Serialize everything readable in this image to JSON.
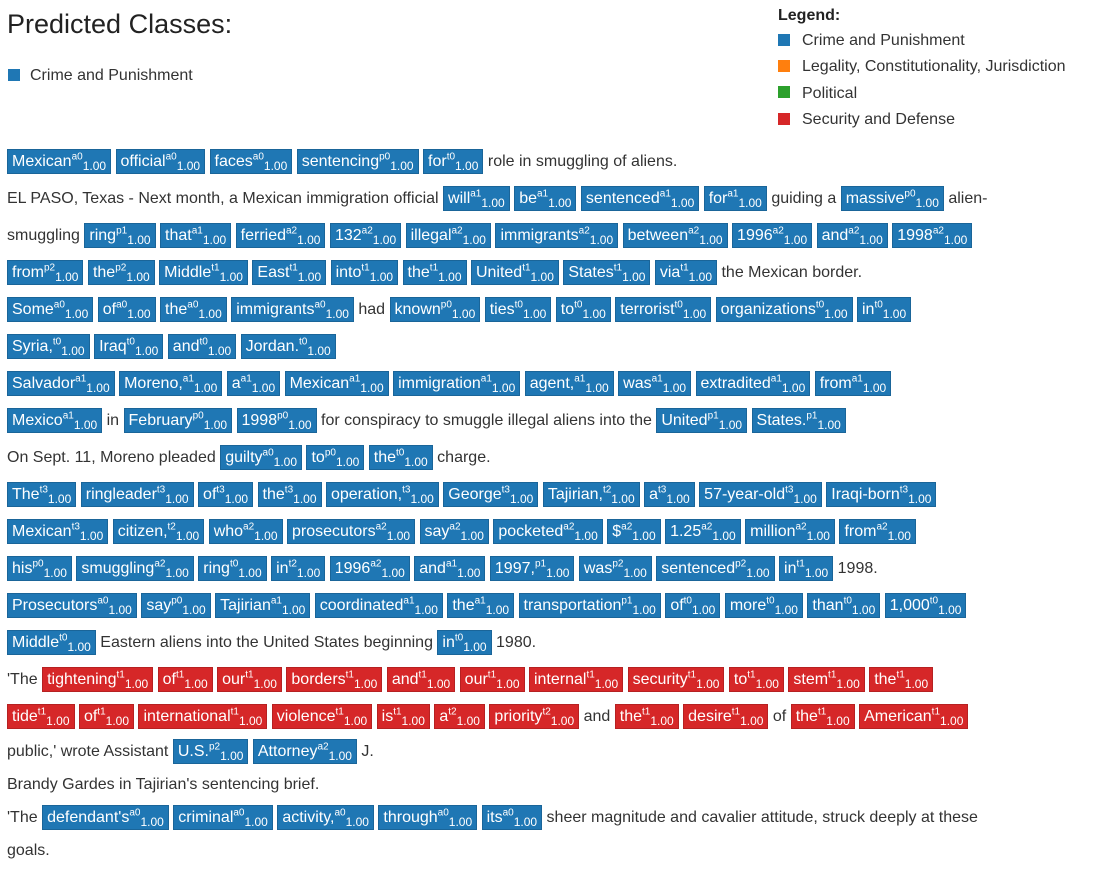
{
  "title": "Predicted Classes:",
  "predicted": [
    {
      "label": "Crime and Punishment",
      "color": "#1f77b4"
    }
  ],
  "legend": {
    "title": "Legend:",
    "items": [
      {
        "label": "Crime and Punishment",
        "color": "#1f77b4"
      },
      {
        "label": "Legality, Constitutionality, Jurisdiction",
        "color": "#ff7f0e"
      },
      {
        "label": "Political",
        "color": "#2ca02c"
      },
      {
        "label": "Security and Defense",
        "color": "#d62728"
      }
    ]
  },
  "lines": [
    [
      [
        "Mexican",
        "a0",
        "1.00",
        "b"
      ],
      [
        "official",
        "a0",
        "1.00",
        "b"
      ],
      [
        "faces",
        "a0",
        "1.00",
        "b"
      ],
      [
        "sentencing",
        "p0",
        "1.00",
        "b"
      ],
      [
        "for",
        "t0",
        "1.00",
        "b"
      ],
      [
        "role in smuggling of aliens."
      ]
    ],
    [
      [
        "EL PASO, Texas - Next month, a Mexican immigration official"
      ],
      [
        "will",
        "a1",
        "1.00",
        "b"
      ],
      [
        "be",
        "a1",
        "1.00",
        "b"
      ],
      [
        "sentenced",
        "a1",
        "1.00",
        "b"
      ],
      [
        "for",
        "a1",
        "1.00",
        "b"
      ],
      [
        "guiding a"
      ],
      [
        "massive",
        "p0",
        "1.00",
        "b"
      ],
      [
        "alien-"
      ]
    ],
    [
      [
        "smuggling"
      ],
      [
        "ring",
        "p1",
        "1.00",
        "b"
      ],
      [
        "that",
        "a1",
        "1.00",
        "b"
      ],
      [
        "ferried",
        "a2",
        "1.00",
        "b"
      ],
      [
        "132",
        "a2",
        "1.00",
        "b"
      ],
      [
        "illegal",
        "a2",
        "1.00",
        "b"
      ],
      [
        "immigrants",
        "a2",
        "1.00",
        "b"
      ],
      [
        "between",
        "a2",
        "1.00",
        "b"
      ],
      [
        "1996",
        "a2",
        "1.00",
        "b"
      ],
      [
        "and",
        "a2",
        "1.00",
        "b"
      ],
      [
        "1998",
        "a2",
        "1.00",
        "b"
      ]
    ],
    [
      [
        "from",
        "p2",
        "1.00",
        "b"
      ],
      [
        "the",
        "p2",
        "1.00",
        "b"
      ],
      [
        "Middle",
        "t1",
        "1.00",
        "b"
      ],
      [
        "East",
        "t1",
        "1.00",
        "b"
      ],
      [
        "into",
        "t1",
        "1.00",
        "b"
      ],
      [
        "the",
        "t1",
        "1.00",
        "b"
      ],
      [
        "United",
        "t1",
        "1.00",
        "b"
      ],
      [
        "States",
        "t1",
        "1.00",
        "b"
      ],
      [
        "via",
        "t1",
        "1.00",
        "b"
      ],
      [
        "the Mexican border."
      ]
    ],
    [
      [
        "Some",
        "a0",
        "1.00",
        "b"
      ],
      [
        "of",
        "a0",
        "1.00",
        "b"
      ],
      [
        "the",
        "a0",
        "1.00",
        "b"
      ],
      [
        "immigrants",
        "a0",
        "1.00",
        "b"
      ],
      [
        "had"
      ],
      [
        "known",
        "p0",
        "1.00",
        "b"
      ],
      [
        "ties",
        "t0",
        "1.00",
        "b"
      ],
      [
        "to",
        "t0",
        "1.00",
        "b"
      ],
      [
        "terrorist",
        "t0",
        "1.00",
        "b"
      ],
      [
        "organizations",
        "t0",
        "1.00",
        "b"
      ],
      [
        "in",
        "t0",
        "1.00",
        "b"
      ]
    ],
    [
      [
        "Syria,",
        "t0",
        "1.00",
        "b"
      ],
      [
        "Iraq",
        "t0",
        "1.00",
        "b"
      ],
      [
        "and",
        "t0",
        "1.00",
        "b"
      ],
      [
        "Jordan.",
        "t0",
        "1.00",
        "b"
      ]
    ],
    [
      [
        "Salvador",
        "a1",
        "1.00",
        "b"
      ],
      [
        "Moreno,",
        "a1",
        "1.00",
        "b"
      ],
      [
        "a",
        "a1",
        "1.00",
        "b"
      ],
      [
        "Mexican",
        "a1",
        "1.00",
        "b"
      ],
      [
        "immigration",
        "a1",
        "1.00",
        "b"
      ],
      [
        "agent,",
        "a1",
        "1.00",
        "b"
      ],
      [
        "was",
        "a1",
        "1.00",
        "b"
      ],
      [
        "extradited",
        "a1",
        "1.00",
        "b"
      ],
      [
        "from",
        "a1",
        "1.00",
        "b"
      ]
    ],
    [
      [
        "Mexico",
        "a1",
        "1.00",
        "b"
      ],
      [
        "in"
      ],
      [
        "February",
        "p0",
        "1.00",
        "b"
      ],
      [
        "1998",
        "p0",
        "1.00",
        "b"
      ],
      [
        "for conspiracy to smuggle illegal aliens into the"
      ],
      [
        "United",
        "p1",
        "1.00",
        "b"
      ],
      [
        "States.",
        "p1",
        "1.00",
        "b"
      ]
    ],
    [
      [
        "On Sept. 11, Moreno pleaded"
      ],
      [
        "guilty",
        "a0",
        "1.00",
        "b"
      ],
      [
        "to",
        "p0",
        "1.00",
        "b"
      ],
      [
        "the",
        "t0",
        "1.00",
        "b"
      ],
      [
        "charge."
      ]
    ],
    [
      [
        "The",
        "t3",
        "1.00",
        "b"
      ],
      [
        "ringleader",
        "t3",
        "1.00",
        "b"
      ],
      [
        "of",
        "t3",
        "1.00",
        "b"
      ],
      [
        "the",
        "t3",
        "1.00",
        "b"
      ],
      [
        "operation,",
        "t3",
        "1.00",
        "b"
      ],
      [
        "George",
        "t3",
        "1.00",
        "b"
      ],
      [
        "Tajirian,",
        "t2",
        "1.00",
        "b"
      ],
      [
        "a",
        "t3",
        "1.00",
        "b"
      ],
      [
        "57-year-old",
        "t3",
        "1.00",
        "b"
      ],
      [
        "Iraqi-born",
        "t3",
        "1.00",
        "b"
      ]
    ],
    [
      [
        "Mexican",
        "t3",
        "1.00",
        "b"
      ],
      [
        "citizen,",
        "t2",
        "1.00",
        "b"
      ],
      [
        "who",
        "a2",
        "1.00",
        "b"
      ],
      [
        "prosecutors",
        "a2",
        "1.00",
        "b"
      ],
      [
        "say",
        "a2",
        "1.00",
        "b"
      ],
      [
        "pocketed",
        "a2",
        "1.00",
        "b"
      ],
      [
        "$",
        "a2",
        "1.00",
        "b"
      ],
      [
        "1.25",
        "a2",
        "1.00",
        "b"
      ],
      [
        "million",
        "a2",
        "1.00",
        "b"
      ],
      [
        "from",
        "a2",
        "1.00",
        "b"
      ]
    ],
    [
      [
        "his",
        "p0",
        "1.00",
        "b"
      ],
      [
        "smuggling",
        "a2",
        "1.00",
        "b"
      ],
      [
        "ring",
        "t0",
        "1.00",
        "b"
      ],
      [
        "in",
        "t2",
        "1.00",
        "b"
      ],
      [
        "1996",
        "a2",
        "1.00",
        "b"
      ],
      [
        "and",
        "a1",
        "1.00",
        "b"
      ],
      [
        "1997,",
        "p1",
        "1.00",
        "b"
      ],
      [
        "was",
        "p2",
        "1.00",
        "b"
      ],
      [
        "sentenced",
        "p2",
        "1.00",
        "b"
      ],
      [
        "in",
        "t1",
        "1.00",
        "b"
      ],
      [
        "1998."
      ]
    ],
    [
      [
        "Prosecutors",
        "a0",
        "1.00",
        "b"
      ],
      [
        "say",
        "p0",
        "1.00",
        "b"
      ],
      [
        "Tajirian",
        "a1",
        "1.00",
        "b"
      ],
      [
        "coordinated",
        "a1",
        "1.00",
        "b"
      ],
      [
        "the",
        "a1",
        "1.00",
        "b"
      ],
      [
        "transportation",
        "p1",
        "1.00",
        "b"
      ],
      [
        "of",
        "t0",
        "1.00",
        "b"
      ],
      [
        "more",
        "t0",
        "1.00",
        "b"
      ],
      [
        "than",
        "t0",
        "1.00",
        "b"
      ],
      [
        "1,000",
        "t0",
        "1.00",
        "b"
      ]
    ],
    [
      [
        "Middle",
        "t0",
        "1.00",
        "b"
      ],
      [
        "Eastern aliens into the United States beginning"
      ],
      [
        "in",
        "t0",
        "1.00",
        "b"
      ],
      [
        "1980."
      ]
    ],
    [
      [
        "'The"
      ],
      [
        "tightening",
        "t1",
        "1.00",
        "r"
      ],
      [
        "of",
        "t1",
        "1.00",
        "r"
      ],
      [
        "our",
        "t1",
        "1.00",
        "r"
      ],
      [
        "borders",
        "t1",
        "1.00",
        "r"
      ],
      [
        "and",
        "t1",
        "1.00",
        "r"
      ],
      [
        "our",
        "t1",
        "1.00",
        "r"
      ],
      [
        "internal",
        "t1",
        "1.00",
        "r"
      ],
      [
        "security",
        "t1",
        "1.00",
        "r"
      ],
      [
        "to",
        "t1",
        "1.00",
        "r"
      ],
      [
        "stem",
        "t1",
        "1.00",
        "r"
      ],
      [
        "the",
        "t1",
        "1.00",
        "r"
      ]
    ],
    [
      [
        "tide",
        "t1",
        "1.00",
        "r"
      ],
      [
        "of",
        "t1",
        "1.00",
        "r"
      ],
      [
        "international",
        "t1",
        "1.00",
        "r"
      ],
      [
        "violence",
        "t1",
        "1.00",
        "r"
      ],
      [
        "is",
        "t1",
        "1.00",
        "r"
      ],
      [
        "a",
        "t2",
        "1.00",
        "r"
      ],
      [
        "priority",
        "t2",
        "1.00",
        "r"
      ],
      [
        "and"
      ],
      [
        "the",
        "t1",
        "1.00",
        "r"
      ],
      [
        "desire",
        "t1",
        "1.00",
        "r"
      ],
      [
        "of"
      ],
      [
        "the",
        "t1",
        "1.00",
        "r"
      ],
      [
        "American",
        "t1",
        "1.00",
        "r"
      ]
    ],
    [
      [
        "public,' wrote Assistant"
      ],
      [
        "U.S.",
        "p2",
        "1.00",
        "b"
      ],
      [
        "Attorney",
        "a2",
        "1.00",
        "b"
      ],
      [
        "J."
      ]
    ],
    [
      [
        "Brandy Gardes in Tajirian's sentencing brief."
      ]
    ],
    [
      [
        "'The"
      ],
      [
        "defendant's",
        "a0",
        "1.00",
        "b"
      ],
      [
        "criminal",
        "a0",
        "1.00",
        "b"
      ],
      [
        "activity,",
        "a0",
        "1.00",
        "b"
      ],
      [
        "through",
        "a0",
        "1.00",
        "b"
      ],
      [
        "its",
        "a0",
        "1.00",
        "b"
      ],
      [
        "sheer magnitude and cavalier attitude, struck deeply at these"
      ]
    ],
    [
      [
        "goals."
      ]
    ]
  ],
  "token_colors": {
    "b": "#1f77b4",
    "r": "#d62728"
  }
}
